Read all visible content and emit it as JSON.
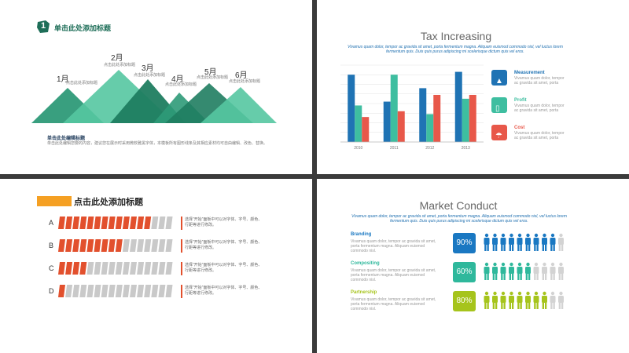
{
  "slide1": {
    "logo_digit": "1",
    "title": "单击此处添加标题",
    "peak_caption": "点击此处添加标题",
    "months": [
      "1月",
      "2月",
      "3月",
      "4月",
      "5月",
      "6月"
    ],
    "subtitle": "单击此处编辑标题",
    "body": "单击此处编辑您要的内容，建议您在展示时采用微软雅黑字体，本模板所有图形线条及其相应素材均可自由编辑、改色、替换。",
    "colors": {
      "dark": "#1e7a5e",
      "mid": "#2fa883",
      "light": "#5ccaa4"
    }
  },
  "slide2": {
    "title": "Tax Increasing",
    "subtitle": "Vivamus quam dolor, tempor ac gravida sit amet, porta fermentum magna. Aliquam euismod commodo nisl, vel luctus lorem fermentum quis. Duis quis purus adipiscing mi scelerisque dictum quis vel eros.",
    "legend": [
      {
        "icon": "cone-icon",
        "label": "Measurement",
        "text": "Vivamus quam dolor, tempor ac gravida sit amet, porta",
        "color": "#1f73b4"
      },
      {
        "icon": "phone-icon",
        "label": "Profit",
        "text": "Vivamus quam dolor, tempor ac gravida sit amet, porta",
        "color": "#3ebea0"
      },
      {
        "icon": "umbrella-icon",
        "label": "Cost",
        "text": "Vivamus quam dolor, tempor ac gravida sit amet, porta",
        "color": "#e8584a"
      }
    ],
    "chart_data": {
      "type": "bar",
      "categories": [
        "2010",
        "2011",
        "2012",
        "2013"
      ],
      "series": [
        {
          "name": "Measurement",
          "values": [
            7,
            4.2,
            5.6,
            7.3
          ],
          "color": "#1f73b4"
        },
        {
          "name": "Profit",
          "values": [
            3.8,
            7,
            2.9,
            4.5
          ],
          "color": "#3ebea0"
        },
        {
          "name": "Cost",
          "values": [
            2.6,
            3.2,
            4.9,
            4.9
          ],
          "color": "#e8584a"
        }
      ],
      "ylim": [
        0,
        8
      ]
    }
  },
  "slide3": {
    "title": "点击此处添加标题",
    "rows": [
      {
        "label": "A",
        "filled": 13,
        "text": "选择“开始”面板中可以对字体、字号、颜色、行距等进行修改。"
      },
      {
        "label": "B",
        "filled": 9,
        "text": "选择“开始”面板中可以对字体、字号、颜色、行距等进行修改。"
      },
      {
        "label": "C",
        "filled": 4,
        "text": "选择“开始”面板中可以对字体、字号、颜色、行距等进行修改。"
      },
      {
        "label": "D",
        "filled": 1,
        "text": "选择“开始”面板中可以对字体、字号、颜色、行距等进行修改。"
      }
    ],
    "total_segments": 16,
    "colors": {
      "filled": "#e2502d",
      "empty": "#c9c9c9",
      "accent": "#f5a023"
    }
  },
  "slide4": {
    "title": "Market Conduct",
    "subtitle": "Vivamus quam dolor, tempor ac gravida sit amet, porta fermentum magna. Aliquam euismod commodo nisl, vel luctus lorem fermentum quis. Duis quis purus adipiscing mi scelerisque dictum quis vel eros.",
    "rows": [
      {
        "label": "Branding",
        "text": "Vivamus quam dolor, tempor ac gravida sit amet, porta fermentum magna. Aliquam euismod commodo nisl.",
        "percent": "90%",
        "value": 0.9,
        "color": "#1a78c2"
      },
      {
        "label": "Compositing",
        "text": "Vivamus quam dolor, tempor ac gravida sit amet, porta fermentum magna. Aliquam euismod commodo nisl.",
        "percent": "60%",
        "value": 0.6,
        "color": "#2fb89c"
      },
      {
        "label": "Partnership",
        "text": "Vivamus quam dolor, tempor ac gravida sit amet, porta fermentum magna. Aliquam euismod commodo nisl.",
        "percent": "80%",
        "value": 0.8,
        "color": "#a6c41c"
      }
    ],
    "people_per_row": 10,
    "empty_color": "#d3d3d3"
  }
}
